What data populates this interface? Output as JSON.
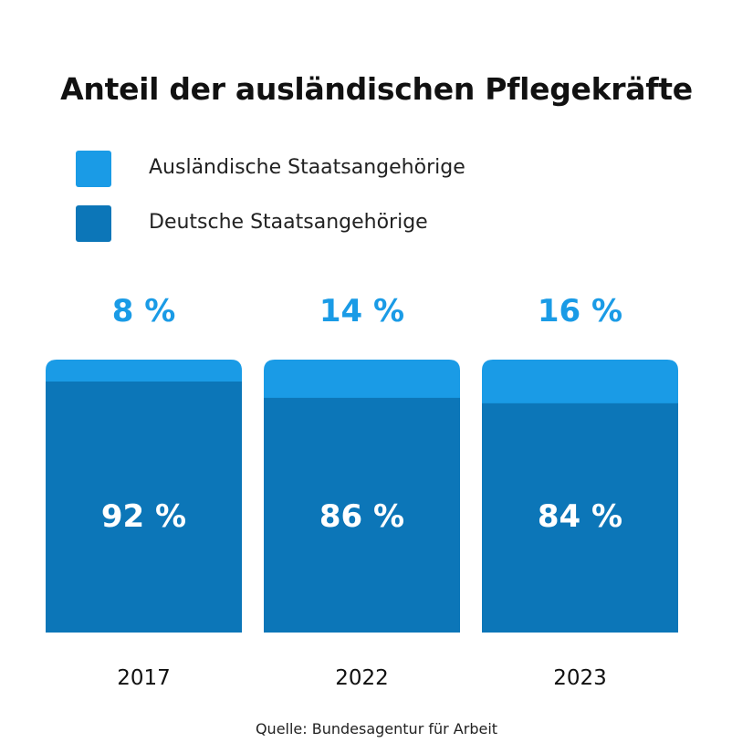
{
  "chart_data": {
    "type": "bar",
    "stacked": true,
    "title": "Anteil der ausländischen Pflegekräfte",
    "categories": [
      "2017",
      "2022",
      "2023"
    ],
    "series": [
      {
        "name": "Ausländische Staatsangehörige",
        "values": [
          8,
          14,
          16
        ],
        "labels": [
          "8 %",
          "14 %",
          "16 %"
        ],
        "color": "#1a9be6"
      },
      {
        "name": "Deutsche Staatsangehörige",
        "values": [
          92,
          86,
          84
        ],
        "labels": [
          "92 %",
          "86 %",
          "84 %"
        ],
        "color": "#0c76b8"
      }
    ],
    "ylim": [
      0,
      100
    ],
    "grid": false,
    "legend_position": "top-left"
  },
  "source": "Quelle: Bundesagentur für Arbeit",
  "colors": {
    "top_label": "#1a9be6",
    "inner_label": "#ffffff",
    "year_label": "#111111"
  }
}
